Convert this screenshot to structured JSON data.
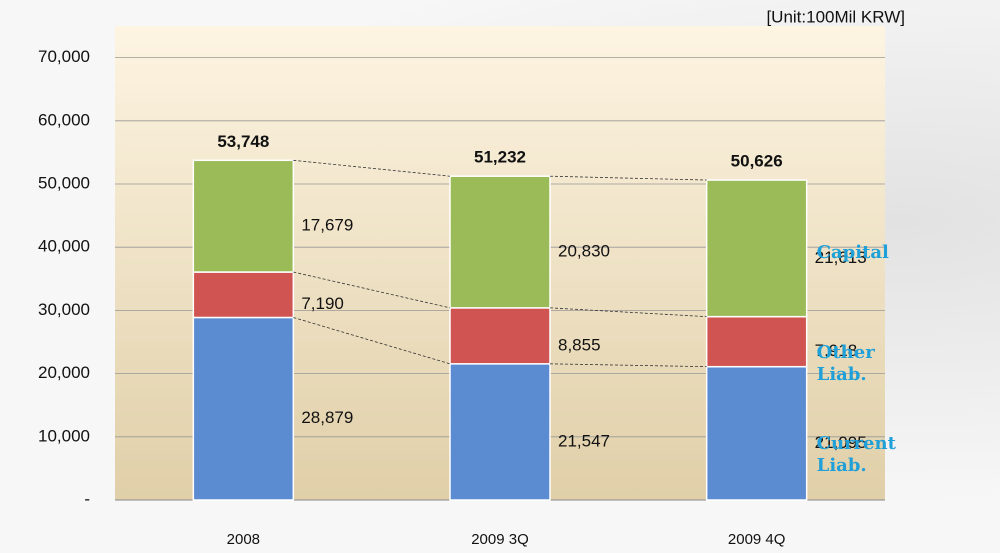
{
  "chart_data": {
    "type": "stacked_bar",
    "unit": "[Unit:100Mil KRW]",
    "categories": [
      "2008",
      "2009 3Q",
      "2009 4Q"
    ],
    "series": [
      {
        "name": "Current Liab.",
        "color": "#5b8bd0",
        "values": [
          28879,
          21547,
          21095
        ],
        "value_labels": [
          "28,879",
          "21,547",
          "21,095"
        ]
      },
      {
        "name": "Other Liab.",
        "color": "#d05552",
        "values": [
          7190,
          8855,
          7918
        ],
        "value_labels": [
          "7,190",
          "8,855",
          "7,918"
        ]
      },
      {
        "name": "Capital",
        "color": "#9bbb59",
        "values": [
          17679,
          20830,
          21613
        ],
        "value_labels": [
          "17,679",
          "20,830",
          "21,613"
        ]
      }
    ],
    "totals": [
      53748,
      51232,
      50626
    ],
    "total_labels": [
      "53,748",
      "51,232",
      "50,626"
    ],
    "ylim": [
      0,
      75000
    ],
    "yticks": [
      {
        "value": 0,
        "label": "-"
      },
      {
        "value": 10000,
        "label": "10,000"
      },
      {
        "value": 20000,
        "label": "20,000"
      },
      {
        "value": 30000,
        "label": "30,000"
      },
      {
        "value": 40000,
        "label": "40,000"
      },
      {
        "value": 50000,
        "label": "50,000"
      },
      {
        "value": 60000,
        "label": "60,000"
      },
      {
        "value": 70000,
        "label": "70,000"
      }
    ],
    "grid": true,
    "legend_color": "#1fa0d8"
  }
}
